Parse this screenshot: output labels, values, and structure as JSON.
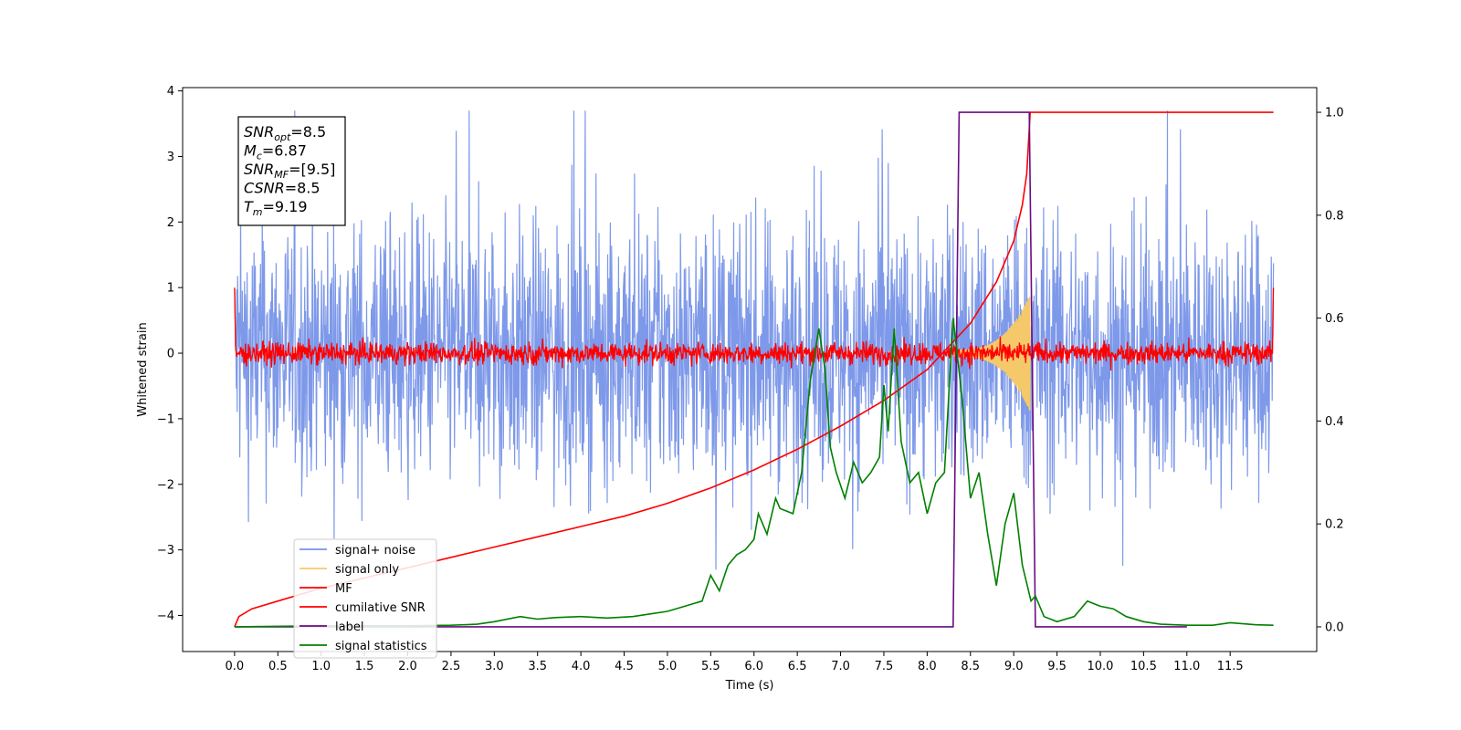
{
  "chart_data": {
    "type": "line",
    "xlabel": "Time (s)",
    "ylabel": "Whitened strain",
    "xlim": [
      -0.6,
      12.5
    ],
    "ylim": [
      -4.55,
      4.05
    ],
    "y2lim": [
      -0.048,
      1.048
    ],
    "x_ticks": [
      "0.0",
      "0.5",
      "1.0",
      "1.5",
      "2.0",
      "2.5",
      "3.0",
      "3.5",
      "4.0",
      "4.5",
      "5.0",
      "5.5",
      "6.0",
      "6.5",
      "7.0",
      "7.5",
      "8.0",
      "8.5",
      "9.0",
      "9.5",
      "10.0",
      "10.5",
      "11.0",
      "11.5"
    ],
    "y_ticks": [
      "4",
      "3",
      "2",
      "1",
      "0",
      "−1",
      "−2",
      "−3",
      "−4"
    ],
    "y2_ticks": [
      "1.0",
      "0.8",
      "0.6",
      "0.4",
      "0.2",
      "0.0"
    ],
    "annotation": {
      "lines": [
        {
          "base": "SNR",
          "sub": "opt",
          "rest": "=8.5"
        },
        {
          "base": "M",
          "sub": "c",
          "rest": "=6.87"
        },
        {
          "base": "SNR",
          "sub": "MF",
          "rest": "=[9.5]"
        },
        {
          "base": "CSNR",
          "sub": "",
          "rest": "=8.5"
        },
        {
          "base": "T",
          "sub": "m",
          "rest": "=9.19"
        }
      ]
    },
    "legend_position": "lower-left",
    "series": [
      {
        "name": "signal+ noise",
        "color": "#7793e8",
        "axis": "left",
        "kind": "noise",
        "x_range": [
          0,
          12.0
        ],
        "amplitude": 1.6
      },
      {
        "name": "signal only",
        "color": "#f5c96a",
        "axis": "left",
        "kind": "chirp",
        "x_range": [
          8.3,
          9.19
        ],
        "envelope": [
          0.05,
          0.9
        ]
      },
      {
        "name": "MF",
        "color": "#ff0000",
        "axis": "left",
        "kind": "mf",
        "x_range": [
          0,
          12.0
        ],
        "end_values": [
          1.0,
          1.0
        ]
      },
      {
        "name": "cumilative SNR",
        "color": "#ff0000",
        "axis": "right",
        "x": [
          0,
          0.05,
          0.2,
          0.5,
          1.0,
          1.5,
          2.0,
          2.5,
          3.0,
          3.5,
          4.0,
          4.5,
          5.0,
          5.5,
          6.0,
          6.5,
          7.0,
          7.5,
          8.0,
          8.5,
          8.8,
          9.0,
          9.1,
          9.15,
          9.19,
          9.3,
          10.0,
          11.0,
          12.0
        ],
        "y": [
          0.0,
          0.02,
          0.035,
          0.05,
          0.075,
          0.095,
          0.115,
          0.135,
          0.155,
          0.175,
          0.195,
          0.215,
          0.24,
          0.27,
          0.305,
          0.345,
          0.39,
          0.44,
          0.5,
          0.59,
          0.67,
          0.75,
          0.82,
          0.88,
          1.0,
          1.0,
          1.0,
          1.0,
          1.0
        ]
      },
      {
        "name": "label",
        "color": "#6a0d83",
        "axis": "right",
        "x": [
          0,
          8.3,
          8.37,
          9.18,
          9.25,
          11.0
        ],
        "y": [
          0.0,
          0.0,
          1.0,
          1.0,
          0.0,
          0.0
        ]
      },
      {
        "name": "signal statistics",
        "color": "#008000",
        "axis": "right",
        "x": [
          0,
          1.0,
          2.0,
          2.5,
          2.8,
          3.0,
          3.3,
          3.5,
          3.7,
          4.0,
          4.3,
          4.6,
          4.8,
          5.0,
          5.2,
          5.4,
          5.5,
          5.6,
          5.7,
          5.8,
          5.9,
          6.0,
          6.05,
          6.15,
          6.25,
          6.3,
          6.45,
          6.55,
          6.65,
          6.75,
          6.82,
          6.88,
          6.95,
          7.05,
          7.15,
          7.25,
          7.35,
          7.45,
          7.5,
          7.55,
          7.62,
          7.7,
          7.8,
          7.9,
          8.0,
          8.1,
          8.2,
          8.3,
          8.4,
          8.5,
          8.6,
          8.7,
          8.8,
          8.9,
          9.0,
          9.1,
          9.2,
          9.25,
          9.35,
          9.5,
          9.7,
          9.85,
          10.0,
          10.15,
          10.3,
          10.5,
          10.7,
          11.0,
          11.3,
          11.5,
          11.8,
          12.0
        ],
        "y": [
          0.0,
          0.002,
          0.002,
          0.003,
          0.005,
          0.01,
          0.02,
          0.015,
          0.018,
          0.02,
          0.017,
          0.02,
          0.025,
          0.03,
          0.04,
          0.05,
          0.1,
          0.07,
          0.12,
          0.14,
          0.15,
          0.17,
          0.22,
          0.18,
          0.25,
          0.23,
          0.22,
          0.3,
          0.48,
          0.58,
          0.5,
          0.35,
          0.3,
          0.25,
          0.32,
          0.28,
          0.3,
          0.33,
          0.47,
          0.38,
          0.58,
          0.36,
          0.28,
          0.3,
          0.22,
          0.28,
          0.3,
          0.6,
          0.45,
          0.25,
          0.3,
          0.18,
          0.08,
          0.2,
          0.26,
          0.12,
          0.05,
          0.06,
          0.02,
          0.01,
          0.02,
          0.05,
          0.04,
          0.035,
          0.02,
          0.01,
          0.005,
          0.003,
          0.003,
          0.008,
          0.004,
          0.003
        ]
      }
    ]
  }
}
